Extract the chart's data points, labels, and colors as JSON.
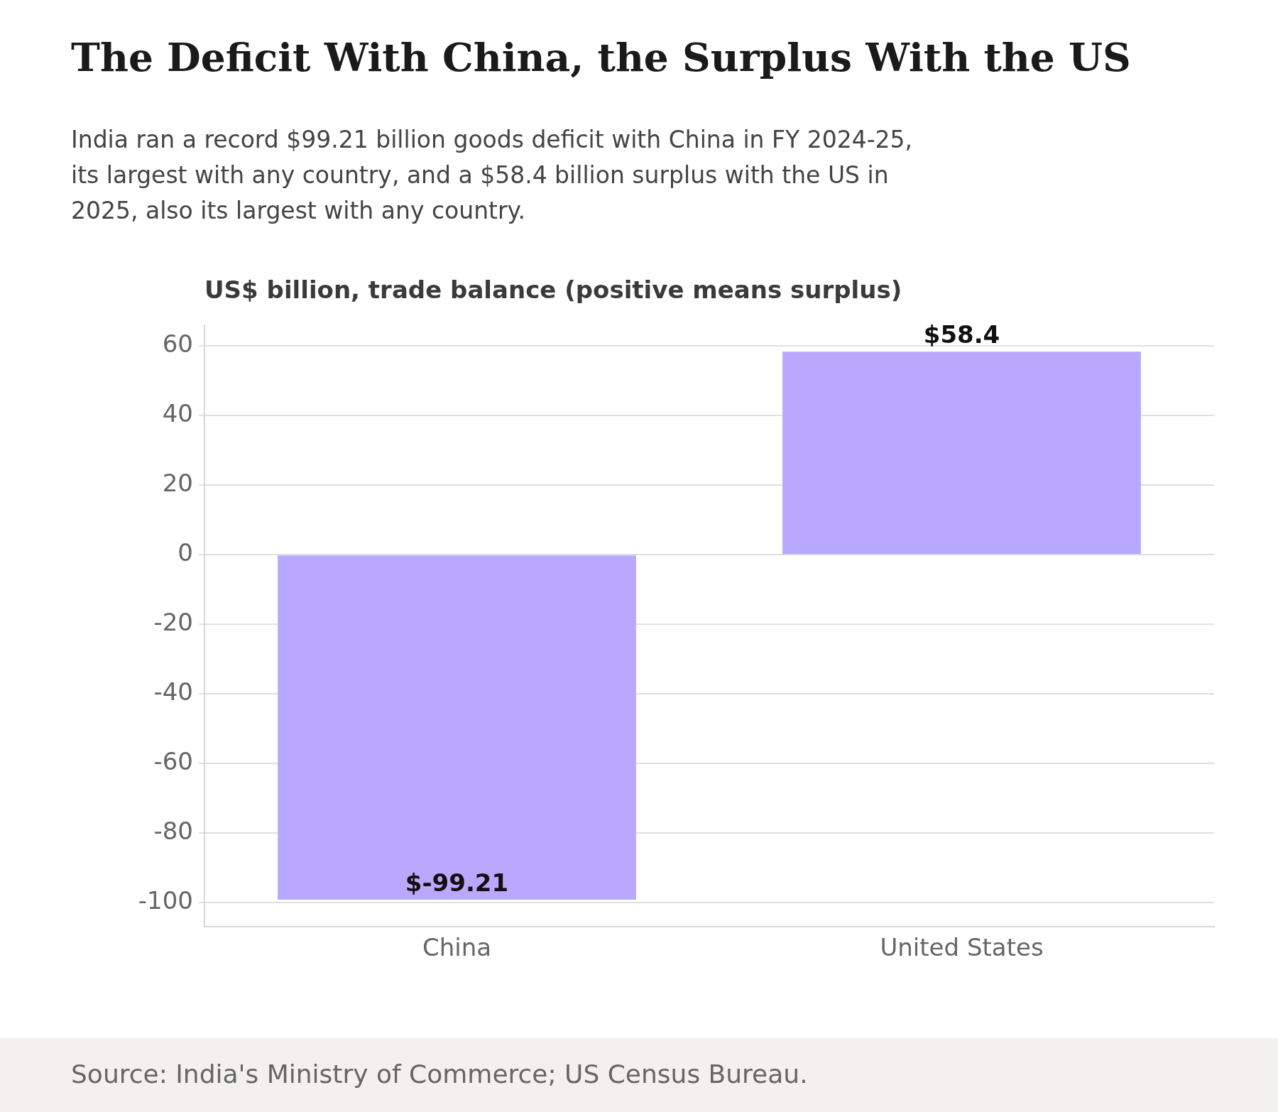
{
  "chart_data": {
    "type": "bar",
    "title": "The Deficit With China, the Surplus With the US",
    "subtitle": "India ran a record $99.21 billion goods deficit with China in FY 2024-25, its largest with any country, and a $58.4 billion surplus with the US in 2025, also its largest with any country.",
    "ylabel": "US$ billion, trade balance (positive means surplus)",
    "categories": [
      "China",
      "United States"
    ],
    "values": [
      -99.21,
      58.4
    ],
    "color": "#b8a9fe",
    "value_labels": [
      "$-99.21",
      "$58.4"
    ],
    "ylim": [
      -107,
      66
    ],
    "yticks": [
      -100,
      -80,
      -60,
      -40,
      -20,
      0,
      20,
      40,
      60
    ],
    "grid": "y",
    "annotations": [
      "Source: India's Ministry of Commerce; US Census Bureau."
    ]
  }
}
